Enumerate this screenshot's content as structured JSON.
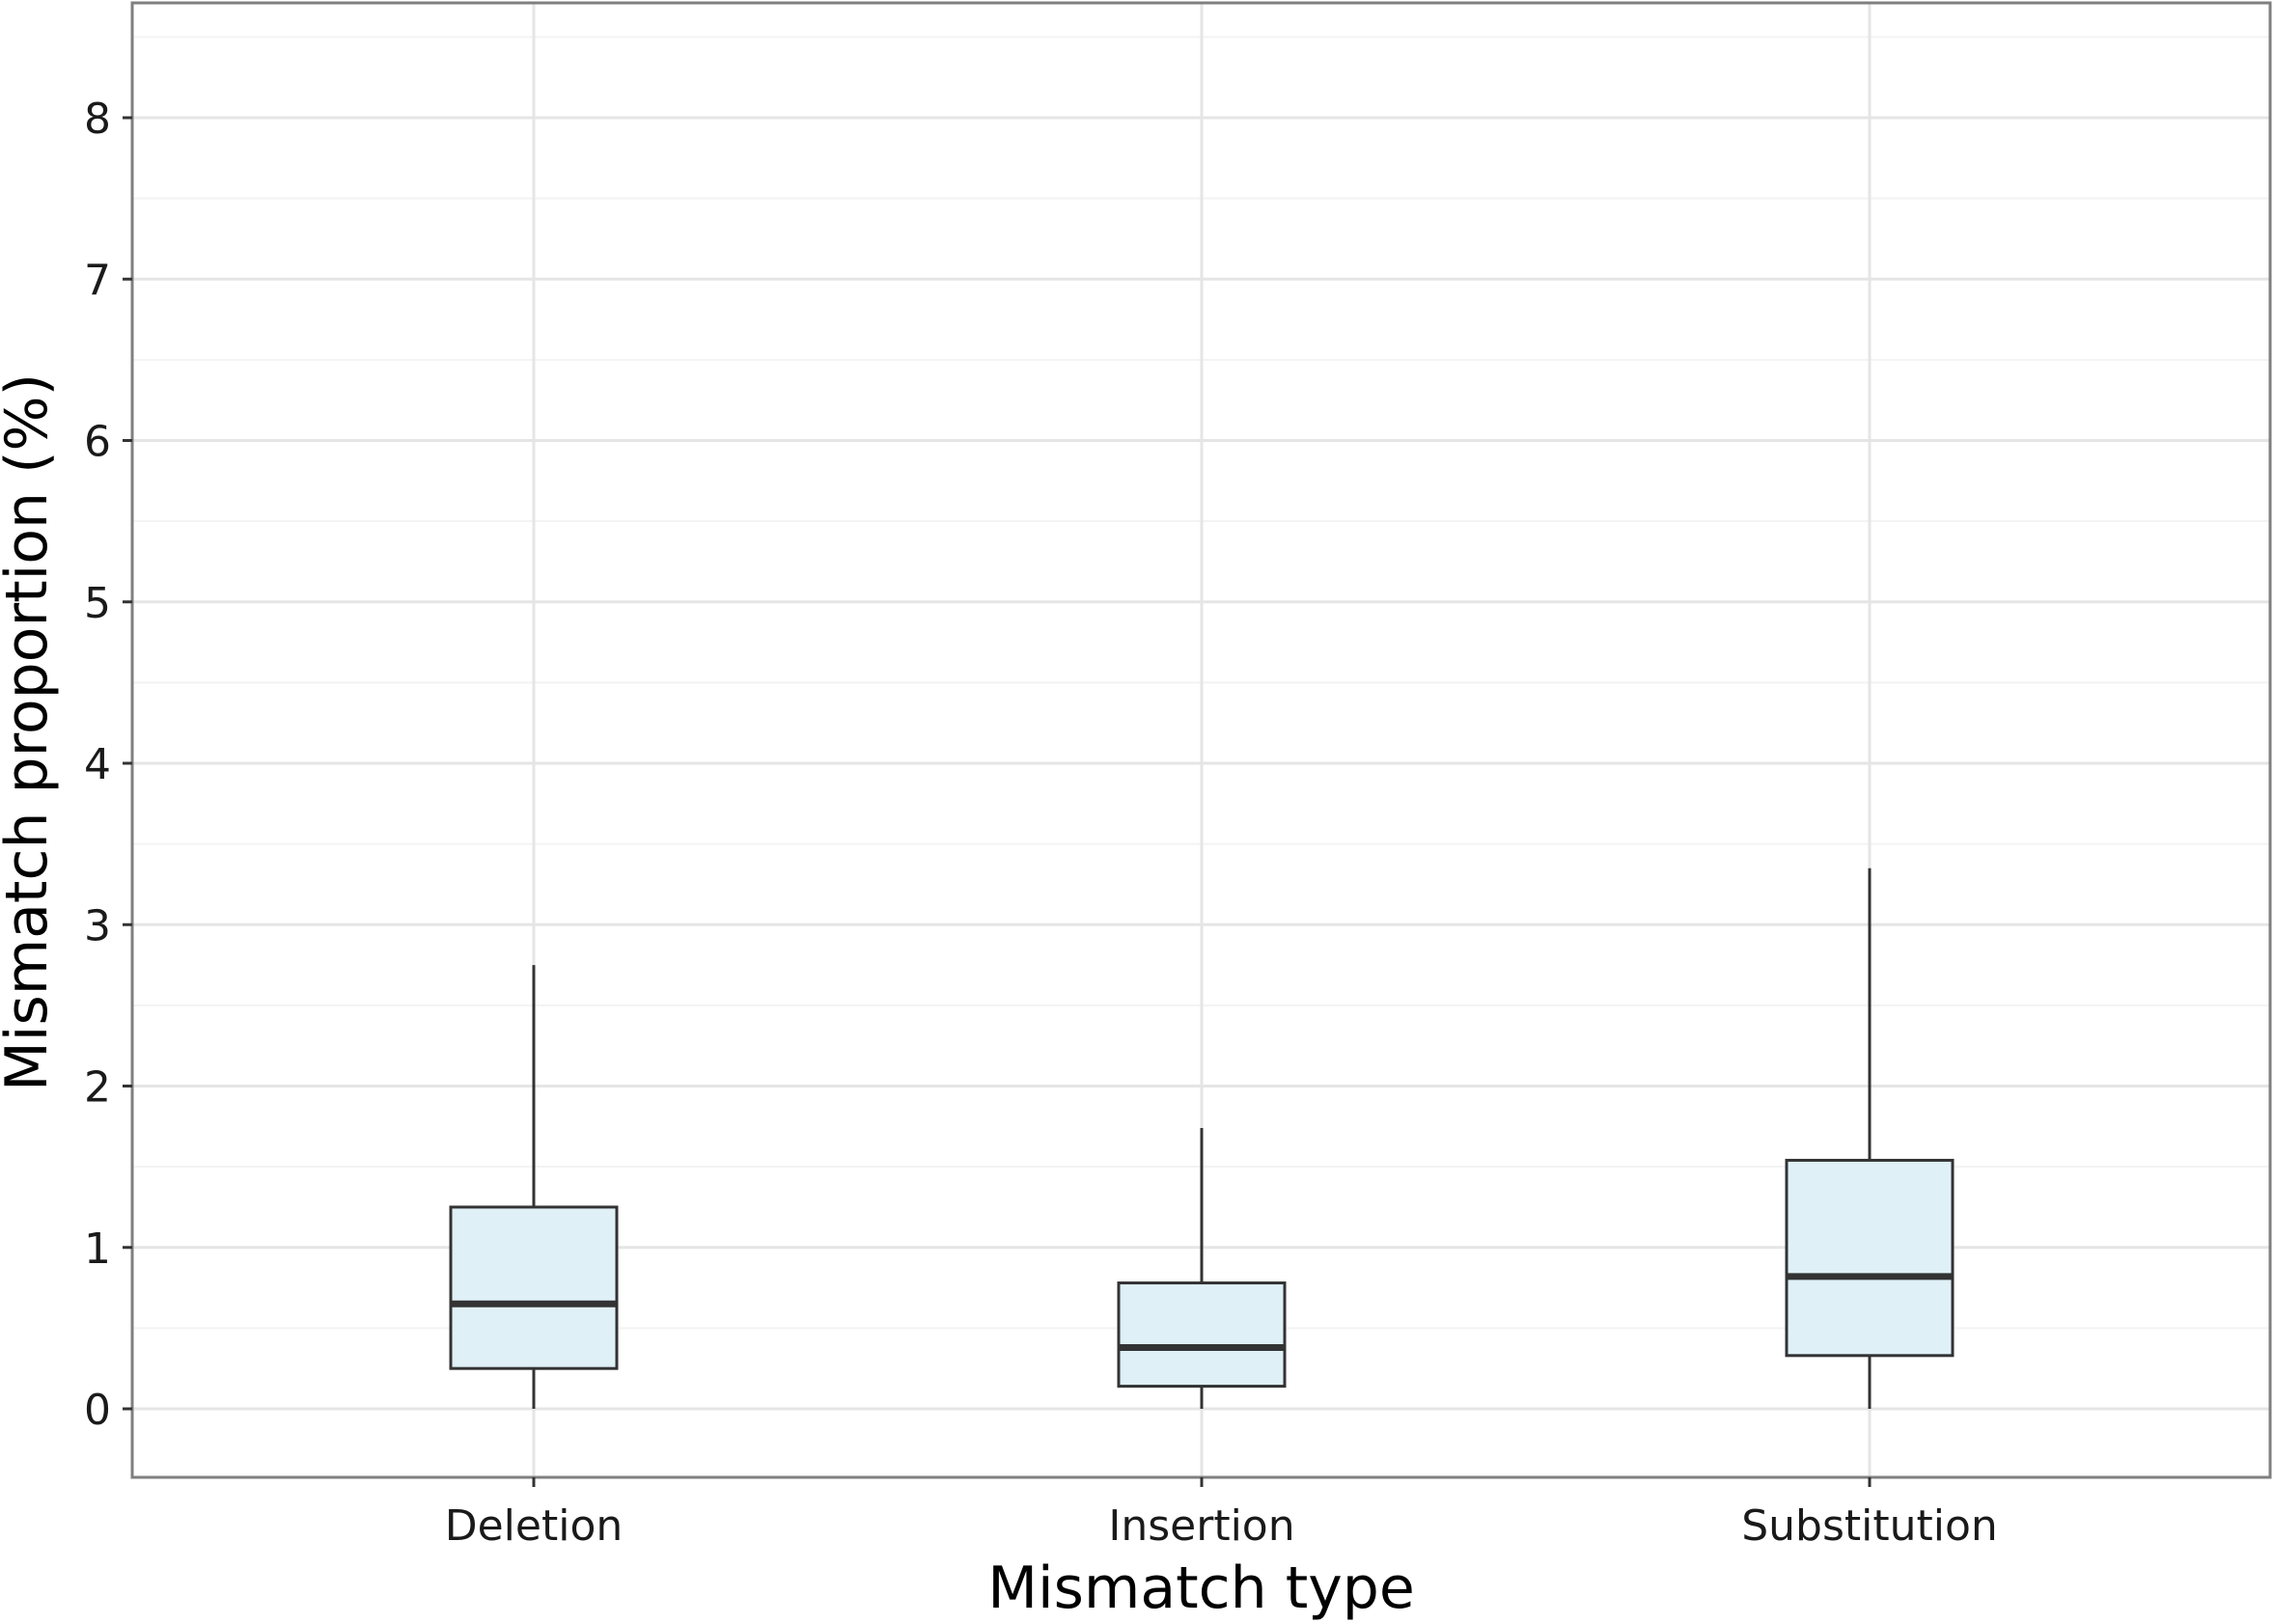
{
  "chart_data": {
    "type": "box",
    "xlabel": "Mismatch type",
    "ylabel": "Mismatch proportion (%)",
    "categories": [
      "Deletion",
      "Insertion",
      "Substitution"
    ],
    "yticks": [
      "0",
      "1",
      "2",
      "3",
      "4",
      "5",
      "6",
      "7",
      "8"
    ],
    "ylim": [
      -0.42,
      8.7
    ],
    "grid": true,
    "boxes": [
      {
        "category": "Deletion",
        "min": 0.0,
        "q1": 0.25,
        "median": 0.65,
        "q3": 1.25,
        "max": 2.75
      },
      {
        "category": "Insertion",
        "min": 0.0,
        "q1": 0.14,
        "median": 0.38,
        "q3": 0.78,
        "max": 1.74
      },
      {
        "category": "Substitution",
        "min": 0.0,
        "q1": 0.33,
        "median": 0.82,
        "q3": 1.54,
        "max": 3.35
      }
    ],
    "colors": {
      "box_fill": "#dff0f7",
      "box_stroke": "#333333",
      "grid_major": "#e5e5e5",
      "grid_minor": "#f3f3f3",
      "panel_border": "#7f7f7f"
    }
  }
}
